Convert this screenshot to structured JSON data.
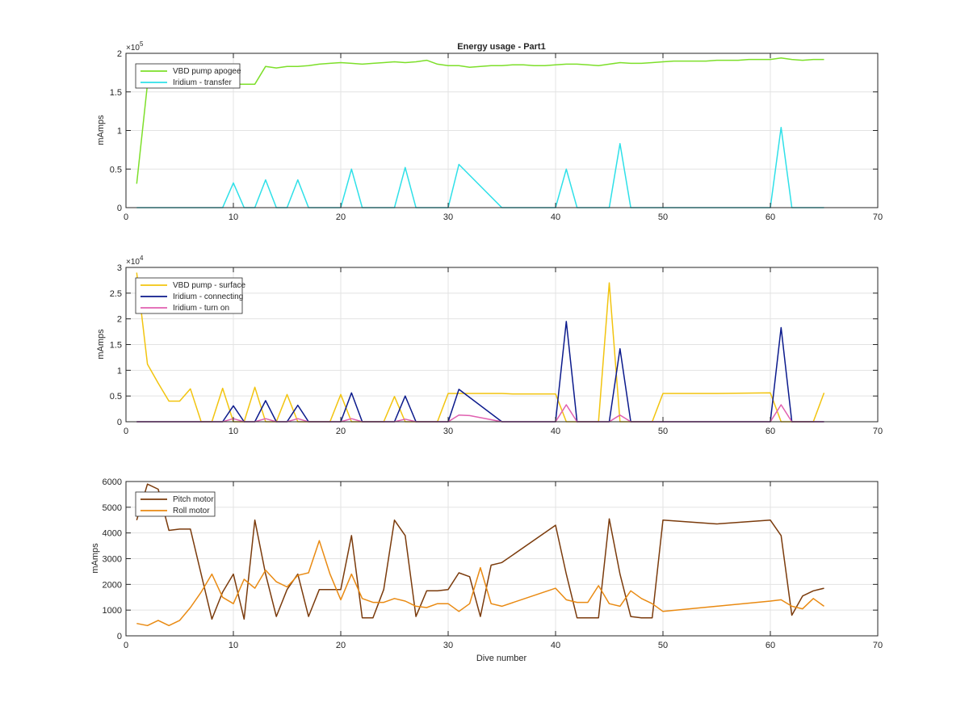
{
  "chart_data": [
    {
      "type": "line",
      "title": "Energy usage - Part1",
      "xlabel": "",
      "ylabel": "mAmps",
      "xlim": [
        0,
        70
      ],
      "ylim": [
        0,
        200000
      ],
      "xticks": [
        0,
        10,
        20,
        30,
        40,
        50,
        60,
        70
      ],
      "yticks": [
        0,
        50000,
        100000,
        150000,
        200000
      ],
      "ytick_labels": [
        "0",
        "0.5",
        "1",
        "1.5",
        "2"
      ],
      "y_exponent": "5",
      "grid": true,
      "legend": "top-left",
      "series": [
        {
          "name": "VBD pump apogee",
          "color": "#7ddf2a",
          "x": [
            1,
            2,
            3,
            4,
            5,
            6,
            7,
            8,
            9,
            10,
            11,
            12,
            13,
            14,
            15,
            16,
            17,
            18,
            19,
            20,
            21,
            22,
            23,
            24,
            25,
            26,
            27,
            28,
            29,
            30,
            31,
            32,
            33,
            34,
            35,
            36,
            37,
            38,
            39,
            40,
            41,
            42,
            43,
            44,
            45,
            46,
            47,
            48,
            49,
            50,
            51,
            52,
            53,
            54,
            55,
            56,
            57,
            58,
            59,
            60,
            61,
            62,
            63,
            64,
            65
          ],
          "y": [
            31000,
            160000,
            163000,
            162000,
            161000,
            160000,
            159000,
            160000,
            160000,
            160000,
            160000,
            160000,
            183000,
            181000,
            183000,
            183000,
            184000,
            186000,
            187000,
            188000,
            187000,
            186000,
            187000,
            188000,
            189000,
            188000,
            189000,
            191000,
            186000,
            184000,
            184000,
            182000,
            183000,
            184000,
            184000,
            185000,
            185000,
            184000,
            184000,
            185000,
            186000,
            186000,
            185000,
            184000,
            186000,
            188000,
            187000,
            187000,
            188000,
            189000,
            190000,
            190000,
            190000,
            190000,
            191000,
            191000,
            191000,
            192000,
            192000,
            192000,
            194000,
            192000,
            191000,
            192000,
            192000
          ]
        },
        {
          "name": "Iridium - transfer",
          "color": "#2ee0e8",
          "x": [
            1,
            9,
            10,
            11,
            12,
            13,
            14,
            15,
            16,
            17,
            20,
            21,
            22,
            25,
            26,
            27,
            30,
            31,
            35,
            40,
            41,
            42,
            45,
            46,
            47,
            60,
            61,
            62,
            65
          ],
          "y": [
            0,
            0,
            32000,
            0,
            0,
            36000,
            0,
            0,
            36000,
            0,
            0,
            50000,
            0,
            0,
            52000,
            0,
            0,
            56000,
            0,
            0,
            50000,
            0,
            0,
            83000,
            0,
            0,
            104000,
            0,
            0
          ]
        }
      ]
    },
    {
      "type": "line",
      "title": "",
      "xlabel": "",
      "ylabel": "mAmps",
      "xlim": [
        0,
        70
      ],
      "ylim": [
        0,
        30000
      ],
      "xticks": [
        0,
        10,
        20,
        30,
        40,
        50,
        60,
        70
      ],
      "yticks": [
        0,
        5000,
        10000,
        15000,
        20000,
        25000,
        30000
      ],
      "ytick_labels": [
        "0",
        "0.5",
        "1",
        "1.5",
        "2",
        "2.5",
        "3"
      ],
      "y_exponent": "4",
      "grid": true,
      "legend": "top-left",
      "series": [
        {
          "name": "VBD pump - surface",
          "color": "#f2c40f",
          "x": [
            1,
            2,
            3,
            4,
            5,
            6,
            7,
            8,
            9,
            10,
            11,
            12,
            13,
            14,
            15,
            16,
            17,
            18,
            19,
            20,
            21,
            22,
            23,
            24,
            25,
            26,
            27,
            28,
            29,
            30,
            31,
            32,
            33,
            34,
            35,
            36,
            40,
            41,
            42,
            43,
            44,
            45,
            46,
            47,
            48,
            49,
            50,
            55,
            60,
            61,
            62,
            63,
            64,
            65
          ],
          "y": [
            29000,
            11200,
            7500,
            4000,
            4000,
            6400,
            0,
            0,
            6500,
            0,
            0,
            6700,
            0,
            0,
            5300,
            0,
            0,
            0,
            0,
            5300,
            0,
            0,
            0,
            0,
            4900,
            0,
            0,
            0,
            0,
            5500,
            5500,
            5500,
            5500,
            5500,
            5500,
            5400,
            5400,
            0,
            0,
            0,
            0,
            27000,
            0,
            0,
            0,
            0,
            5500,
            5500,
            5600,
            0,
            0,
            0,
            0,
            5600
          ]
        },
        {
          "name": "Iridium - connecting",
          "color": "#0b1a8c",
          "x": [
            1,
            9,
            10,
            11,
            12,
            13,
            14,
            15,
            16,
            17,
            20,
            21,
            22,
            25,
            26,
            27,
            30,
            31,
            35,
            40,
            41,
            42,
            45,
            46,
            47,
            60,
            61,
            62,
            65
          ],
          "y": [
            0,
            0,
            3100,
            0,
            0,
            4100,
            0,
            0,
            3200,
            0,
            0,
            5600,
            0,
            0,
            5000,
            0,
            0,
            6300,
            0,
            0,
            19500,
            0,
            0,
            14200,
            0,
            0,
            18300,
            0,
            0
          ]
        },
        {
          "name": "Iridium - turn on",
          "color": "#e060b0",
          "x": [
            1,
            9,
            10,
            11,
            12,
            13,
            14,
            15,
            16,
            17,
            20,
            21,
            22,
            25,
            26,
            27,
            30,
            31,
            32,
            35,
            40,
            41,
            42,
            45,
            46,
            47,
            60,
            61,
            62,
            65
          ],
          "y": [
            0,
            0,
            600,
            0,
            0,
            600,
            0,
            0,
            600,
            0,
            0,
            600,
            0,
            0,
            500,
            0,
            0,
            1300,
            1200,
            0,
            0,
            3300,
            0,
            0,
            1300,
            0,
            0,
            3300,
            0,
            0
          ]
        }
      ]
    },
    {
      "type": "line",
      "title": "",
      "xlabel": "Dive number",
      "ylabel": "mAmps",
      "xlim": [
        0,
        70
      ],
      "ylim": [
        0,
        6000
      ],
      "xticks": [
        0,
        10,
        20,
        30,
        40,
        50,
        60,
        70
      ],
      "yticks": [
        0,
        1000,
        2000,
        3000,
        4000,
        5000,
        6000
      ],
      "ytick_labels": [
        "0",
        "1000",
        "2000",
        "3000",
        "4000",
        "5000",
        "6000"
      ],
      "y_exponent": "",
      "grid": true,
      "legend": "top-left",
      "series": [
        {
          "name": "Pitch motor",
          "color": "#7b3b0c",
          "x": [
            1,
            2,
            3,
            4,
            5,
            6,
            7,
            8,
            9,
            10,
            11,
            12,
            13,
            14,
            15,
            16,
            17,
            18,
            19,
            20,
            21,
            22,
            23,
            24,
            25,
            26,
            27,
            28,
            29,
            30,
            31,
            32,
            33,
            34,
            35,
            40,
            41,
            42,
            43,
            44,
            45,
            46,
            47,
            48,
            49,
            50,
            55,
            60,
            61,
            62,
            63,
            64,
            65
          ],
          "y": [
            4500,
            5900,
            5700,
            4100,
            4150,
            4150,
            2400,
            650,
            1700,
            2400,
            650,
            4500,
            2400,
            750,
            1800,
            2400,
            750,
            1800,
            1800,
            1800,
            3900,
            700,
            700,
            1800,
            4500,
            3900,
            750,
            1750,
            1750,
            1800,
            2450,
            2300,
            750,
            2750,
            2850,
            4300,
            2400,
            700,
            700,
            700,
            4550,
            2400,
            750,
            700,
            700,
            4500,
            4350,
            4500,
            3900,
            800,
            1550,
            1750,
            1850
          ]
        },
        {
          "name": "Roll motor",
          "color": "#e98a12",
          "x": [
            1,
            2,
            3,
            4,
            5,
            6,
            7,
            8,
            9,
            10,
            11,
            12,
            13,
            14,
            15,
            16,
            17,
            18,
            19,
            20,
            21,
            22,
            23,
            24,
            25,
            26,
            27,
            28,
            29,
            30,
            31,
            32,
            33,
            34,
            35,
            40,
            41,
            42,
            43,
            44,
            45,
            46,
            47,
            48,
            49,
            50,
            55,
            60,
            61,
            62,
            63,
            64,
            65
          ],
          "y": [
            480,
            400,
            600,
            400,
            600,
            1100,
            1700,
            2400,
            1500,
            1250,
            2200,
            1850,
            2550,
            2100,
            1900,
            2350,
            2450,
            3700,
            2400,
            1400,
            2400,
            1450,
            1300,
            1300,
            1450,
            1350,
            1150,
            1100,
            1250,
            1250,
            950,
            1250,
            2650,
            1250,
            1150,
            1850,
            1400,
            1300,
            1300,
            1950,
            1250,
            1150,
            1750,
            1450,
            1250,
            950,
            1150,
            1350,
            1400,
            1150,
            1050,
            1450,
            1150
          ]
        }
      ]
    }
  ]
}
